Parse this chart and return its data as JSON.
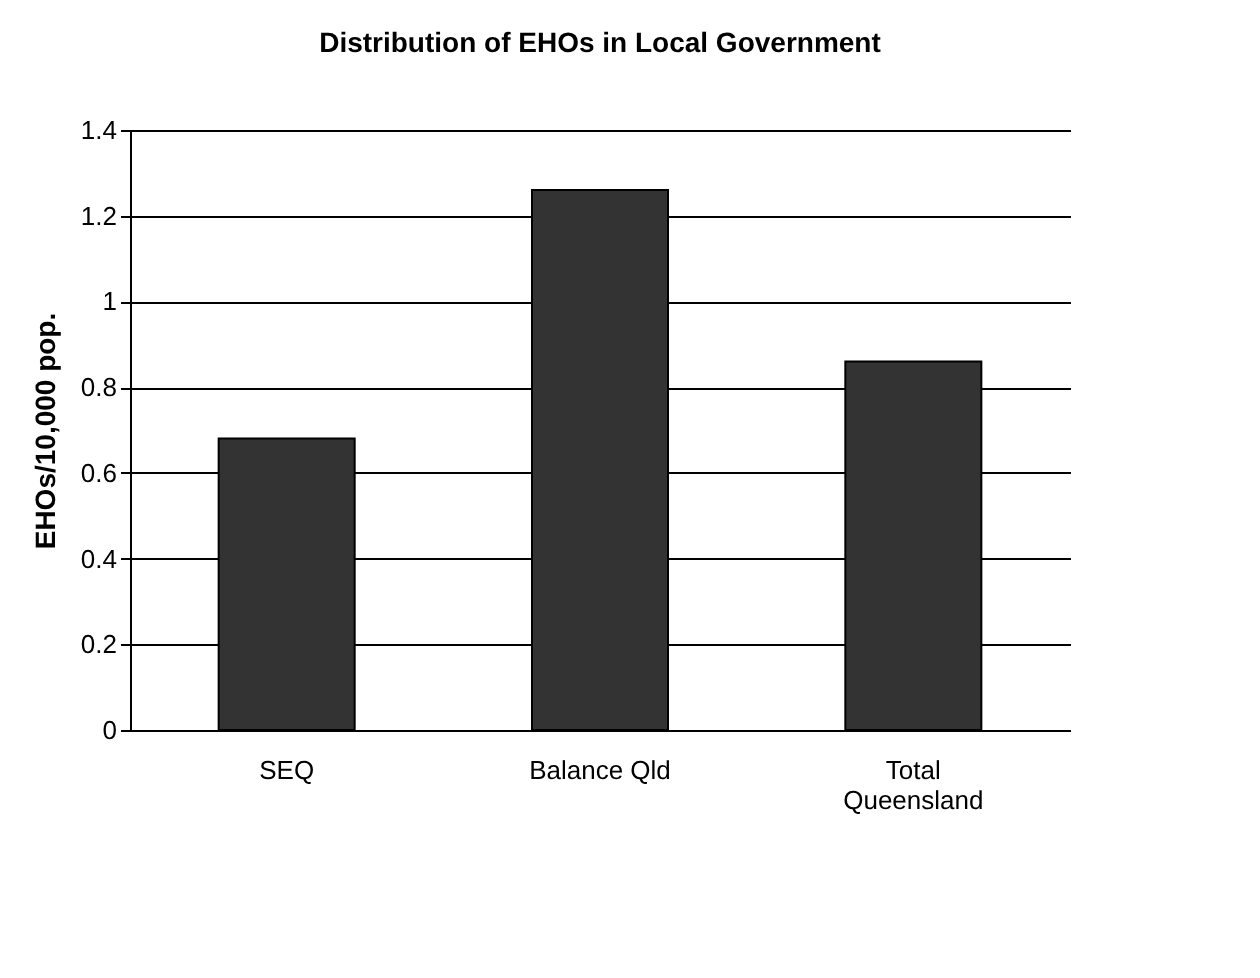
{
  "chart_data": {
    "type": "bar",
    "title": "Distribution of EHOs in Local Government",
    "ylabel": "EHOs/10,000 pop.",
    "categories": [
      "SEQ",
      "Balance Qld",
      "Total Queensland"
    ],
    "values": [
      0.68,
      1.26,
      0.86
    ],
    "color": "#333333",
    "ylim": [
      0,
      1.4
    ],
    "yticks": [
      0,
      0.2,
      0.4,
      0.6,
      0.8,
      1,
      1.2,
      1.4
    ],
    "grid": "y",
    "legend": false
  }
}
